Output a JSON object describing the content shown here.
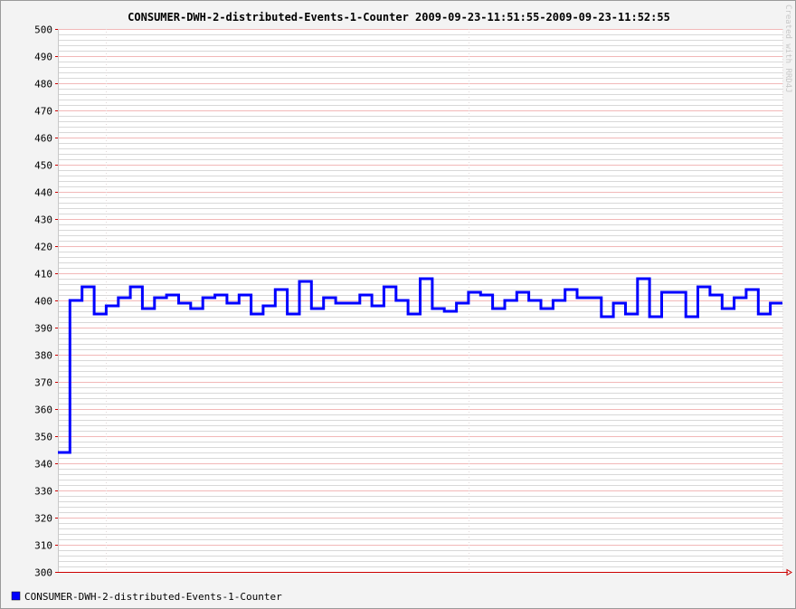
{
  "chart_data": {
    "type": "line",
    "title": "CONSUMER-DWH-2-distributed-Events-1-Counter 2009-09-23-11:51:55-2009-09-23-11:52:55",
    "xlabel": "",
    "ylabel": "",
    "ylim": [
      300,
      500
    ],
    "yticks": [
      300,
      310,
      320,
      330,
      340,
      350,
      360,
      370,
      380,
      390,
      400,
      410,
      420,
      430,
      440,
      450,
      460,
      470,
      480,
      490,
      500
    ],
    "xlim": [
      0,
      60
    ],
    "step": true,
    "grid": true,
    "legend_position": "bottom-left",
    "series": [
      {
        "name": "CONSUMER-DWH-2-distributed-Events-1-Counter",
        "color": "#0000ff",
        "x": [
          0,
          1,
          2,
          3,
          4,
          5,
          6,
          7,
          8,
          9,
          10,
          11,
          12,
          13,
          14,
          15,
          16,
          17,
          18,
          19,
          20,
          21,
          22,
          23,
          24,
          25,
          26,
          27,
          28,
          29,
          30,
          31,
          32,
          33,
          34,
          35,
          36,
          37,
          38,
          39,
          40,
          41,
          42,
          43,
          44,
          45,
          46,
          47,
          48,
          49,
          50,
          51,
          52,
          53,
          54,
          55,
          56,
          57,
          58,
          59
        ],
        "values": [
          344,
          400,
          405,
          395,
          398,
          401,
          405,
          397,
          401,
          402,
          399,
          397,
          401,
          402,
          399,
          402,
          395,
          398,
          404,
          395,
          407,
          397,
          401,
          399,
          399,
          402,
          398,
          405,
          400,
          395,
          408,
          397,
          396,
          399,
          403,
          402,
          397,
          400,
          403,
          400,
          397,
          400,
          404,
          401,
          401,
          394,
          399,
          395,
          408,
          394,
          403,
          403,
          394,
          405,
          402,
          397,
          401,
          404,
          395,
          399
        ]
      }
    ],
    "watermark": "Created with RRD4J"
  }
}
